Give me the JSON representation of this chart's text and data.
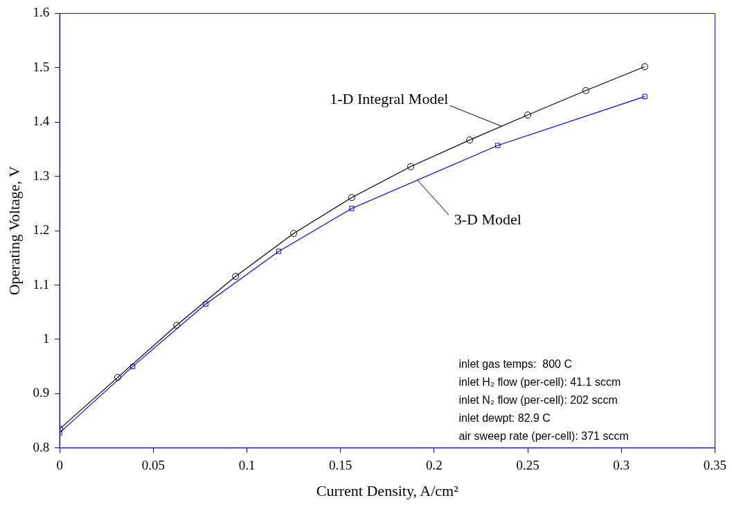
{
  "chart_data": {
    "type": "line",
    "xlabel": "Current Density, A/cm²",
    "ylabel": "Operating Voltage, V",
    "xlim": [
      0,
      0.35
    ],
    "xticks": [
      0,
      0.05,
      0.1,
      0.15,
      0.2,
      0.25,
      0.3,
      0.35
    ],
    "ylim": [
      0.8,
      1.6
    ],
    "yticks": [
      0.8,
      0.9,
      1,
      1.1,
      1.2,
      1.3,
      1.4,
      1.5,
      1.6
    ],
    "grid": false,
    "legend": false,
    "line_style": "solid",
    "series": [
      {
        "name": "1-D Integral Model",
        "color": "#000000",
        "marker": "circle",
        "x": [
          0,
          0.031,
          0.0625,
          0.094,
          0.125,
          0.156,
          0.1875,
          0.219,
          0.25,
          0.281,
          0.3125
        ],
        "values": [
          0.835,
          0.93,
          1.026,
          1.116,
          1.195,
          1.261,
          1.318,
          1.367,
          1.413,
          1.458,
          1.502
        ]
      },
      {
        "name": "3-D Model",
        "color": "#0000ff",
        "marker": "square",
        "x": [
          0,
          0.039,
          0.078,
          0.117,
          0.156,
          0.234,
          0.3125
        ],
        "values": [
          0.828,
          0.95,
          1.065,
          1.162,
          1.241,
          1.357,
          1.447
        ]
      }
    ],
    "annotations": [
      "inlet gas temps:  800 C",
      "inlet H₂ flow (per-cell): 41.1 sccm",
      "inlet N₂ flow (per-cell): 202 sccm",
      "inlet dewpt: 82.9 C",
      "air sweep rate (per-cell): 371 sccm"
    ]
  }
}
